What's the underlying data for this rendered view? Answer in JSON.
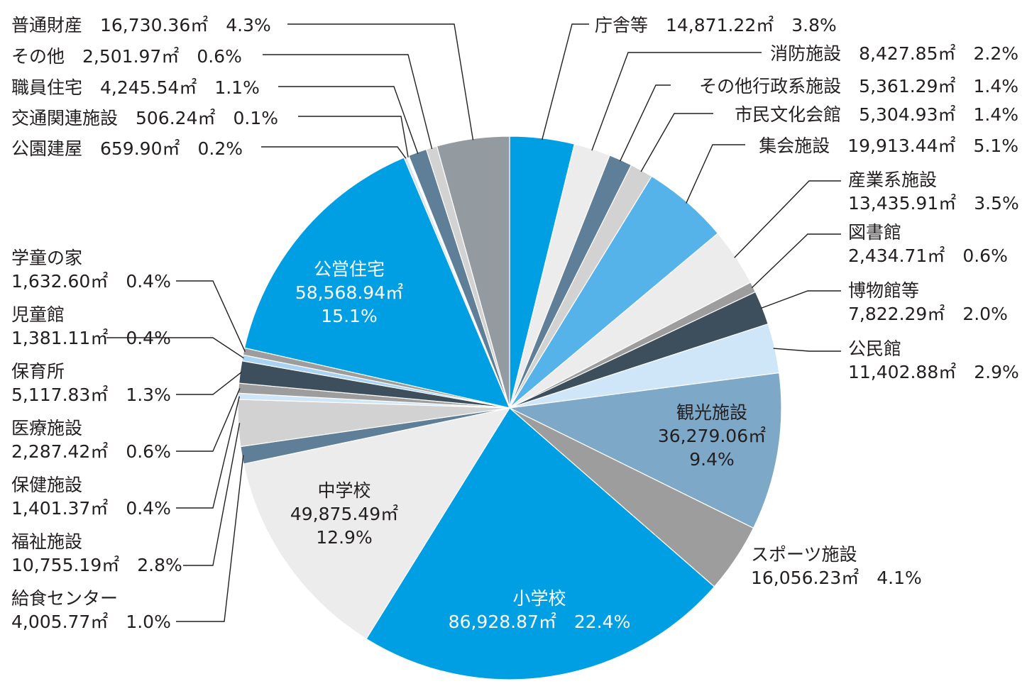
{
  "chart_data": {
    "type": "pie",
    "title": "",
    "unit": "㎡",
    "start": "12 o'clock, clockwise",
    "slices": [
      {
        "name": "庁舎等",
        "area": "14,871.22㎡",
        "percent": "3.8%",
        "value": 14871.22,
        "color": "#009fe3"
      },
      {
        "name": "消防施設",
        "area": "8,427.85㎡",
        "percent": "2.2%",
        "value": 8427.85,
        "color": "#ececec"
      },
      {
        "name": "その他行政系施設",
        "area": "5,361.29㎡",
        "percent": "1.4%",
        "value": 5361.29,
        "color": "#5e7f97"
      },
      {
        "name": "市民文化会館",
        "area": "5,304.93㎡",
        "percent": "1.4%",
        "value": 5304.93,
        "color": "#d2d2d2"
      },
      {
        "name": "集会施設",
        "area": "19,913.44㎡",
        "percent": "5.1%",
        "value": 19913.44,
        "color": "#56b3ea"
      },
      {
        "name": "産業系施設",
        "area": "13,435.91㎡",
        "percent": "3.5%",
        "value": 13435.91,
        "color": "#ececec"
      },
      {
        "name": "図書館",
        "area": "2,434.71㎡",
        "percent": "0.6%",
        "value": 2434.71,
        "color": "#9d9d9d"
      },
      {
        "name": "博物館等",
        "area": "7,822.29㎡",
        "percent": "2.0%",
        "value": 7822.29,
        "color": "#3d4f5c"
      },
      {
        "name": "公民館",
        "area": "11,402.88㎡",
        "percent": "2.9%",
        "value": 11402.88,
        "color": "#cfe6f8"
      },
      {
        "name": "観光施設",
        "area": "36,279.06㎡",
        "percent": "9.4%",
        "value": 36279.06,
        "color": "#7da8c7"
      },
      {
        "name": "スポーツ施設",
        "area": "16,056.23㎡",
        "percent": "4.1%",
        "value": 16056.23,
        "color": "#9d9d9d"
      },
      {
        "name": "小学校",
        "area": "86,928.87㎡",
        "percent": "22.4%",
        "value": 86928.87,
        "color": "#009fe3"
      },
      {
        "name": "中学校",
        "area": "49,875.49㎡",
        "percent": "12.9%",
        "value": 49875.49,
        "color": "#ececec"
      },
      {
        "name": "給食センター",
        "area": "4,005.77㎡",
        "percent": "1.0%",
        "value": 4005.77,
        "color": "#5e7f97"
      },
      {
        "name": "福祉施設",
        "area": "10,755.19㎡",
        "percent": "2.8%",
        "value": 10755.19,
        "color": "#d2d2d2"
      },
      {
        "name": "保健施設",
        "area": "1,401.37㎡",
        "percent": "0.4%",
        "value": 1401.37,
        "color": "#cfe6f8"
      },
      {
        "name": "医療施設",
        "area": "2,287.42㎡",
        "percent": "0.6%",
        "value": 2287.42,
        "color": "#9d9d9d"
      },
      {
        "name": "保育所",
        "area": "5,117.83㎡",
        "percent": "1.3%",
        "value": 5117.83,
        "color": "#3d4f5c"
      },
      {
        "name": "児童館",
        "area": "1,381.11㎡",
        "percent": "0.4%",
        "value": 1381.11,
        "color": "#a8d3f3"
      },
      {
        "name": "学童の家",
        "area": "1,632.60㎡",
        "percent": "0.4%",
        "value": 1632.6,
        "color": "#9d9d9d"
      },
      {
        "name": "公営住宅",
        "area": "58,568.94㎡",
        "percent": "15.1%",
        "value": 58568.94,
        "color": "#009fe3"
      },
      {
        "name": "公園建屋",
        "area": "659.90㎡",
        "percent": "0.2%",
        "value": 659.9,
        "color": "#cfe6f8"
      },
      {
        "name": "交通関連施設",
        "area": "506.24㎡",
        "percent": "0.1%",
        "value": 506.24,
        "color": "#ffffff"
      },
      {
        "name": "職員住宅",
        "area": "4,245.54㎡",
        "percent": "1.1%",
        "value": 4245.54,
        "color": "#5e7f97"
      },
      {
        "name": "その他",
        "area": "2,501.97㎡",
        "percent": "0.6%",
        "value": 2501.97,
        "color": "#d2d2d2"
      },
      {
        "name": "普通財産",
        "area": "16,730.36㎡",
        "percent": "4.3%",
        "value": 16730.36,
        "color": "#939aa0"
      }
    ]
  }
}
